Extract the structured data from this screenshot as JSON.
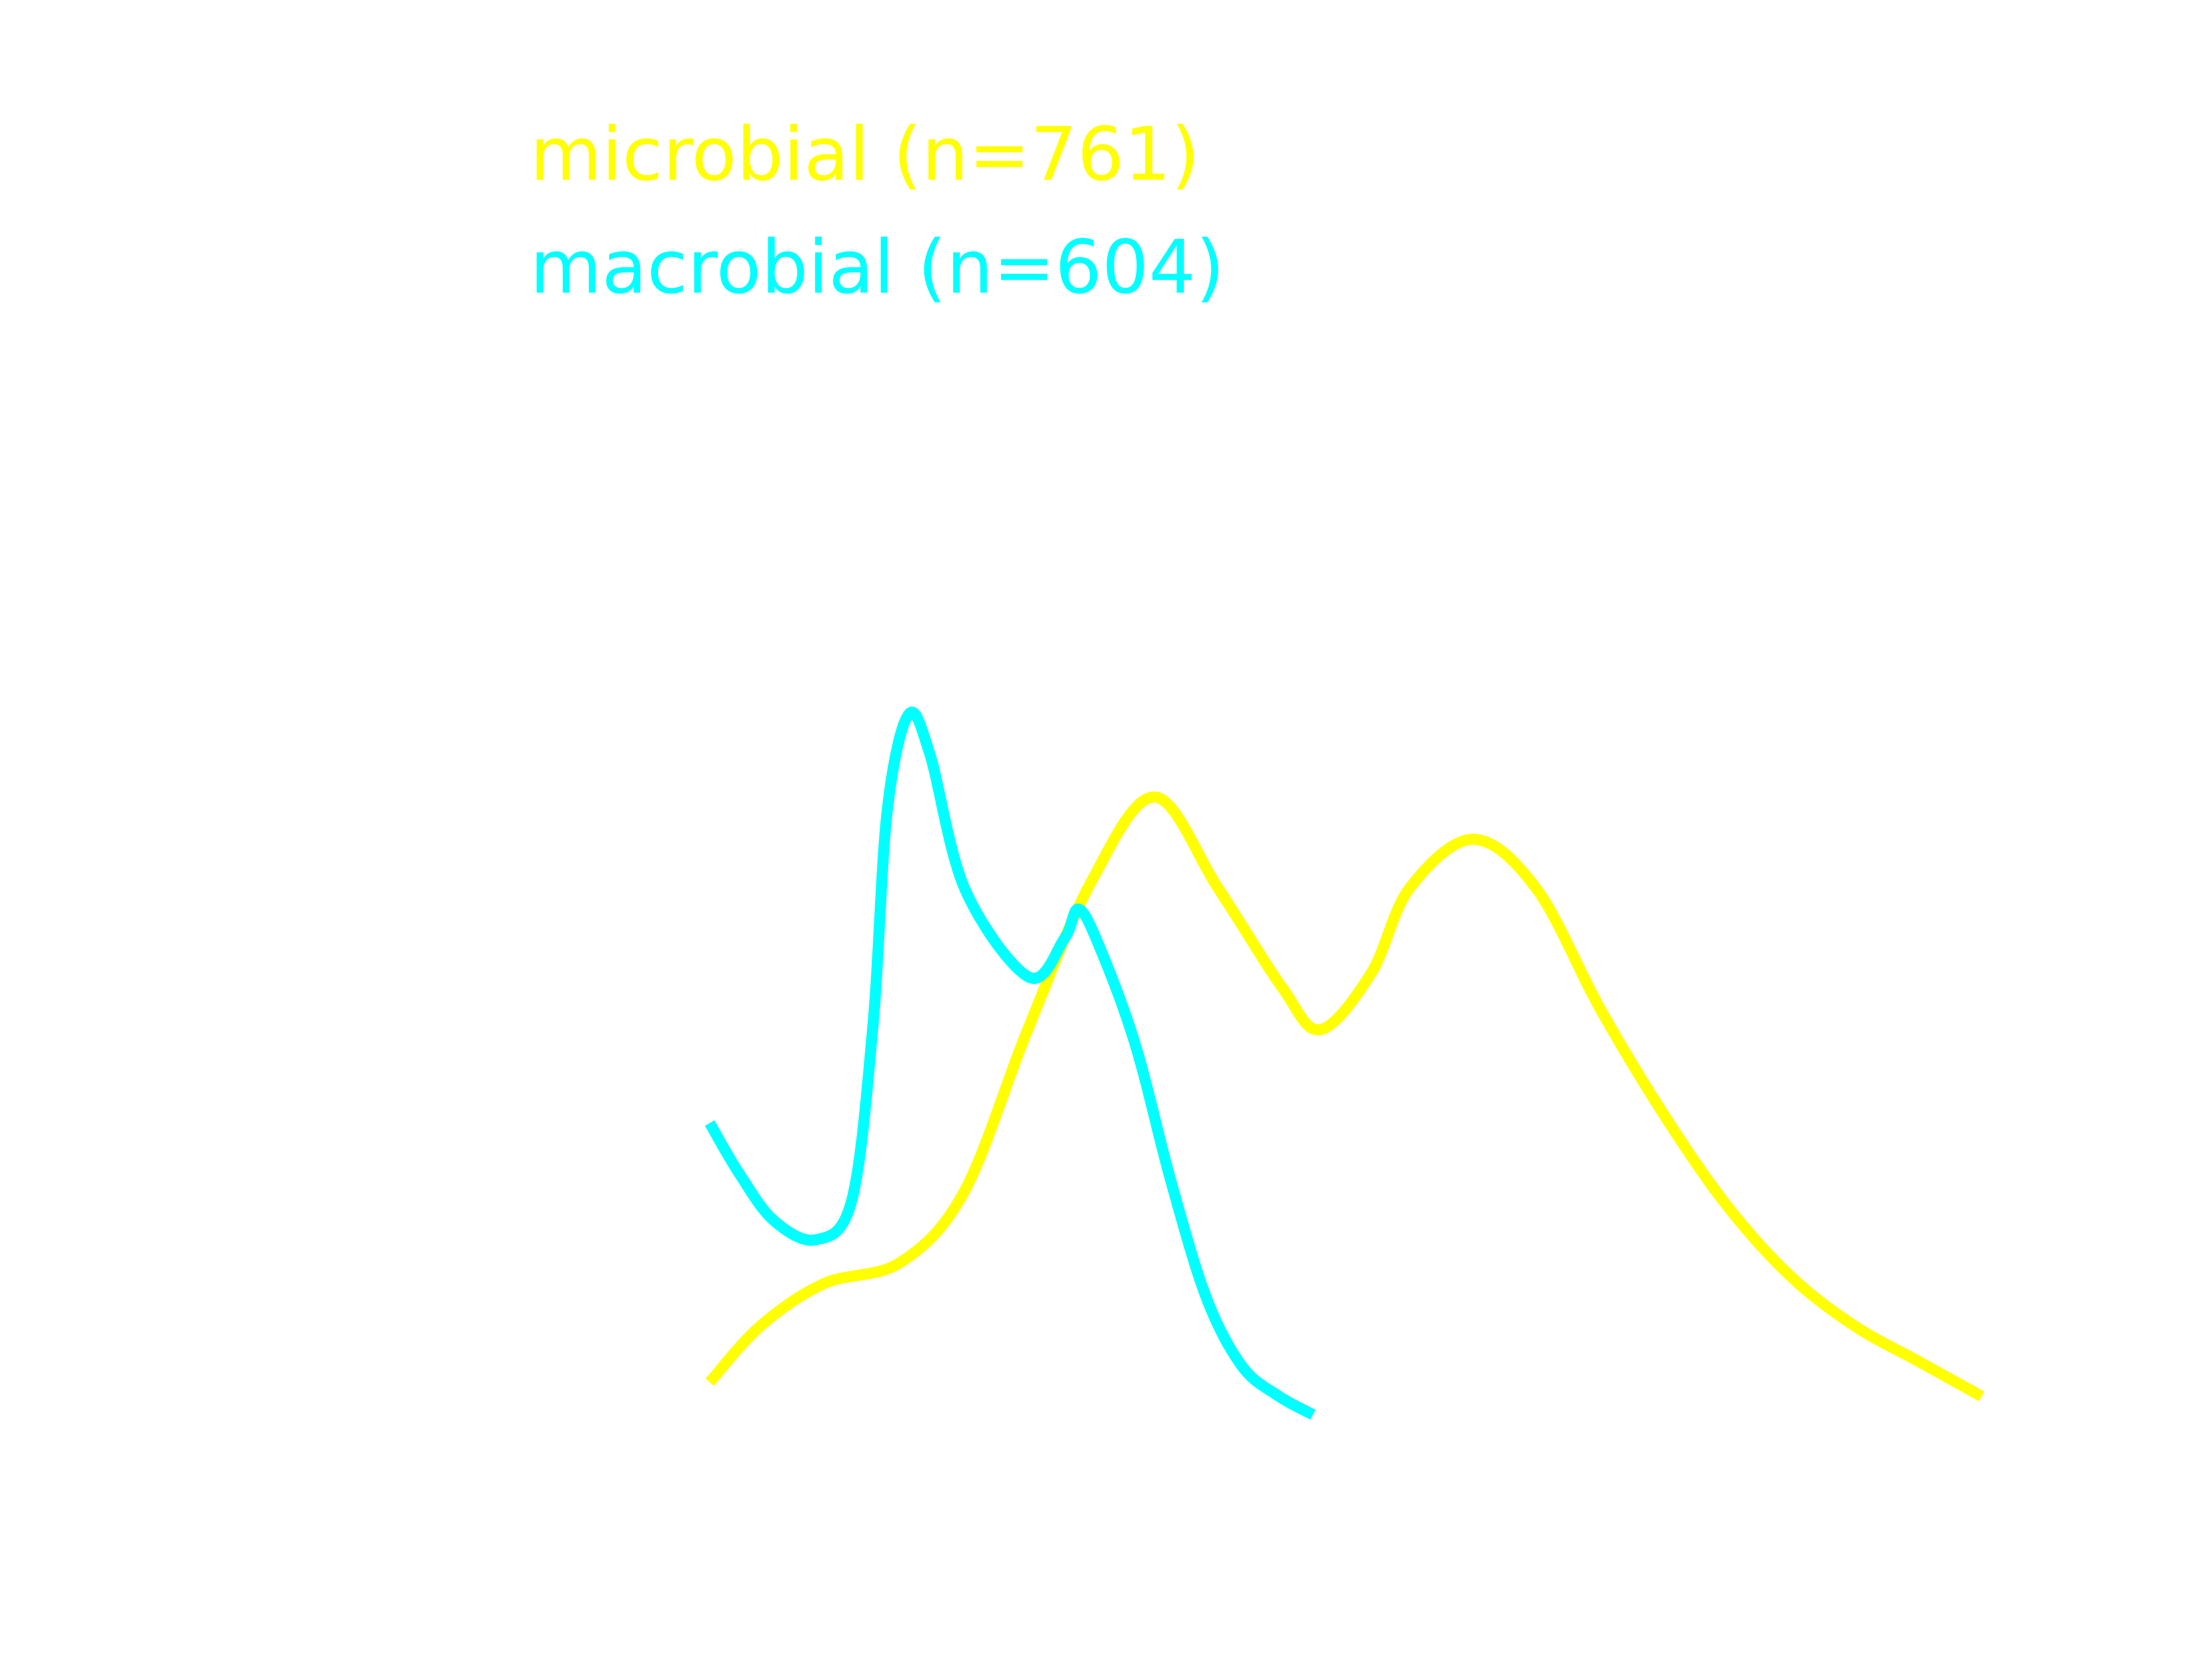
{
  "chart_data": {
    "type": "line",
    "title": "",
    "xlabel": "",
    "ylabel": "",
    "grid": false,
    "axes_visible": false,
    "legend_position": "top-left",
    "xlim": [
      0,
      1
    ],
    "ylim": [
      0,
      1
    ],
    "series": [
      {
        "name": "microbial (n=761)",
        "color": "#ffff00",
        "x": [
          0.0,
          0.04,
          0.09,
          0.15,
          0.2,
          0.25,
          0.3,
          0.35,
          0.4,
          0.45,
          0.48,
          0.52,
          0.55,
          0.6,
          0.65,
          0.7,
          0.75,
          0.8,
          0.85,
          0.9,
          0.95,
          1.0
        ],
        "y": [
          0.02,
          0.1,
          0.16,
          0.19,
          0.29,
          0.52,
          0.73,
          0.85,
          0.72,
          0.58,
          0.52,
          0.6,
          0.72,
          0.79,
          0.72,
          0.55,
          0.4,
          0.27,
          0.17,
          0.1,
          0.05,
          0.0
        ]
      },
      {
        "name": "macrobial (n=604)",
        "color": "#00ffff",
        "x": [
          0.0,
          0.04,
          0.09,
          0.15,
          0.2,
          0.23,
          0.25,
          0.28,
          0.31,
          0.36,
          0.45,
          0.5,
          0.52,
          0.55,
          0.6,
          0.65,
          0.7,
          0.75,
          0.8,
          0.85
        ],
        "y": [
          0.3,
          0.25,
          0.2,
          0.18,
          0.22,
          0.4,
          0.62,
          0.72,
          0.68,
          0.54,
          0.45,
          0.49,
          0.52,
          0.48,
          0.38,
          0.24,
          0.12,
          0.05,
          0.02,
          0.0
        ]
      }
    ]
  }
}
